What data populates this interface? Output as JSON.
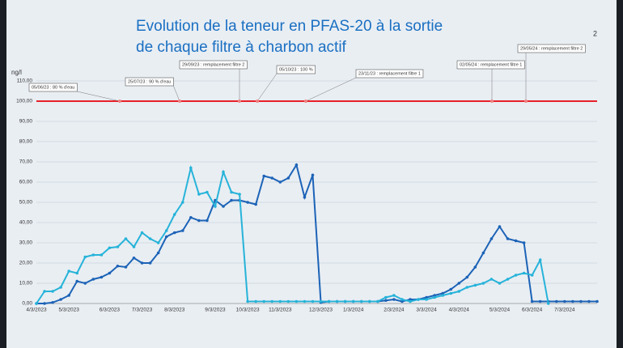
{
  "page_number": "2",
  "chart_data": {
    "type": "line",
    "title_lines": [
      "Evolution de la teneur en PFAS-20 à la sortie",
      "de chaque filtre à charbon actif"
    ],
    "y_label": "ng/l",
    "categories": [
      "4/3/2023",
      null,
      null,
      null,
      "5/3/2023",
      null,
      null,
      null,
      null,
      "6/3/2023",
      null,
      null,
      null,
      "7/3/2023",
      null,
      null,
      null,
      "8/3/2023",
      null,
      null,
      null,
      null,
      "9/3/2023",
      null,
      null,
      null,
      "10/3/2023",
      null,
      null,
      null,
      "11/3/2023",
      null,
      null,
      null,
      null,
      "12/3/2023",
      null,
      null,
      null,
      "1/3/2024",
      null,
      null,
      null,
      null,
      "2/3/2024",
      null,
      null,
      null,
      "3/3/2024",
      null,
      null,
      null,
      "4/3/2024",
      null,
      null,
      null,
      null,
      "5/3/2024",
      null,
      null,
      null,
      "6/3/2024",
      null,
      null,
      null,
      "7/3/2024",
      null,
      null,
      null,
      null
    ],
    "series": [
      {
        "color": "#1c63b7",
        "values": [
          0,
          0,
          0.5,
          2,
          4,
          11,
          10,
          12,
          13,
          15,
          18.5,
          18,
          22.5,
          20,
          20,
          25,
          33,
          35,
          36,
          42.5,
          41,
          41,
          51,
          48,
          51,
          51,
          50,
          49,
          63,
          62,
          60,
          62,
          68.5,
          52.5,
          63.5,
          0.5,
          1,
          1,
          1,
          1,
          1,
          1,
          1,
          1.5,
          2,
          1,
          2,
          2,
          3,
          4,
          5,
          7,
          10,
          13,
          18,
          25,
          32,
          38,
          32,
          31,
          30,
          1,
          1,
          1,
          1,
          1,
          1,
          1,
          1,
          1
        ]
      },
      {
        "color": "#26b3d9",
        "values": [
          0,
          6,
          6,
          8,
          16,
          15,
          23,
          24,
          24,
          27.5,
          28,
          32,
          28,
          35,
          32,
          30,
          36,
          44,
          50,
          67,
          54,
          55,
          48,
          65,
          55,
          54,
          1,
          1,
          1,
          1,
          1,
          1,
          1,
          1,
          1,
          1,
          1,
          1,
          1,
          1,
          1,
          1,
          1,
          3,
          4,
          2,
          1,
          2,
          2,
          3,
          4,
          5,
          6,
          8,
          9,
          10,
          12,
          10,
          12,
          14,
          15,
          14,
          21.5,
          0,
          null,
          null,
          null,
          null,
          null,
          null
        ]
      }
    ],
    "limit": {
      "value": 100,
      "color": "#e8202a"
    },
    "annotations": [
      "05/06/23 : 80 % d'eau",
      "25/07/23 : 90 % d'eau",
      "29/09/23 : remplacement filtre 2",
      "05/10/23 : 100 %",
      "23/11/23 : remplacement filtre 1",
      "02/05/24 : remplacement filtre 1",
      "29/05/24 : remplacement filtre 2"
    ],
    "ylim": [
      0,
      110
    ],
    "yticks": [
      {
        "value": 0,
        "label": "0,00"
      },
      {
        "value": 10,
        "label": "10,00"
      },
      {
        "value": 20,
        "label": "20,00"
      },
      {
        "value": 30,
        "label": "30,00"
      },
      {
        "value": 40,
        "label": "40,00"
      },
      {
        "value": 50,
        "label": "50,00"
      },
      {
        "value": 60,
        "label": "60,00"
      },
      {
        "value": 70,
        "label": "70,00"
      },
      {
        "value": 80,
        "label": "80,00"
      },
      {
        "value": 90,
        "label": "90,00"
      },
      {
        "value": 100,
        "label": "100,00"
      },
      {
        "value": 110,
        "label": "110,00"
      }
    ],
    "grid": true
  }
}
